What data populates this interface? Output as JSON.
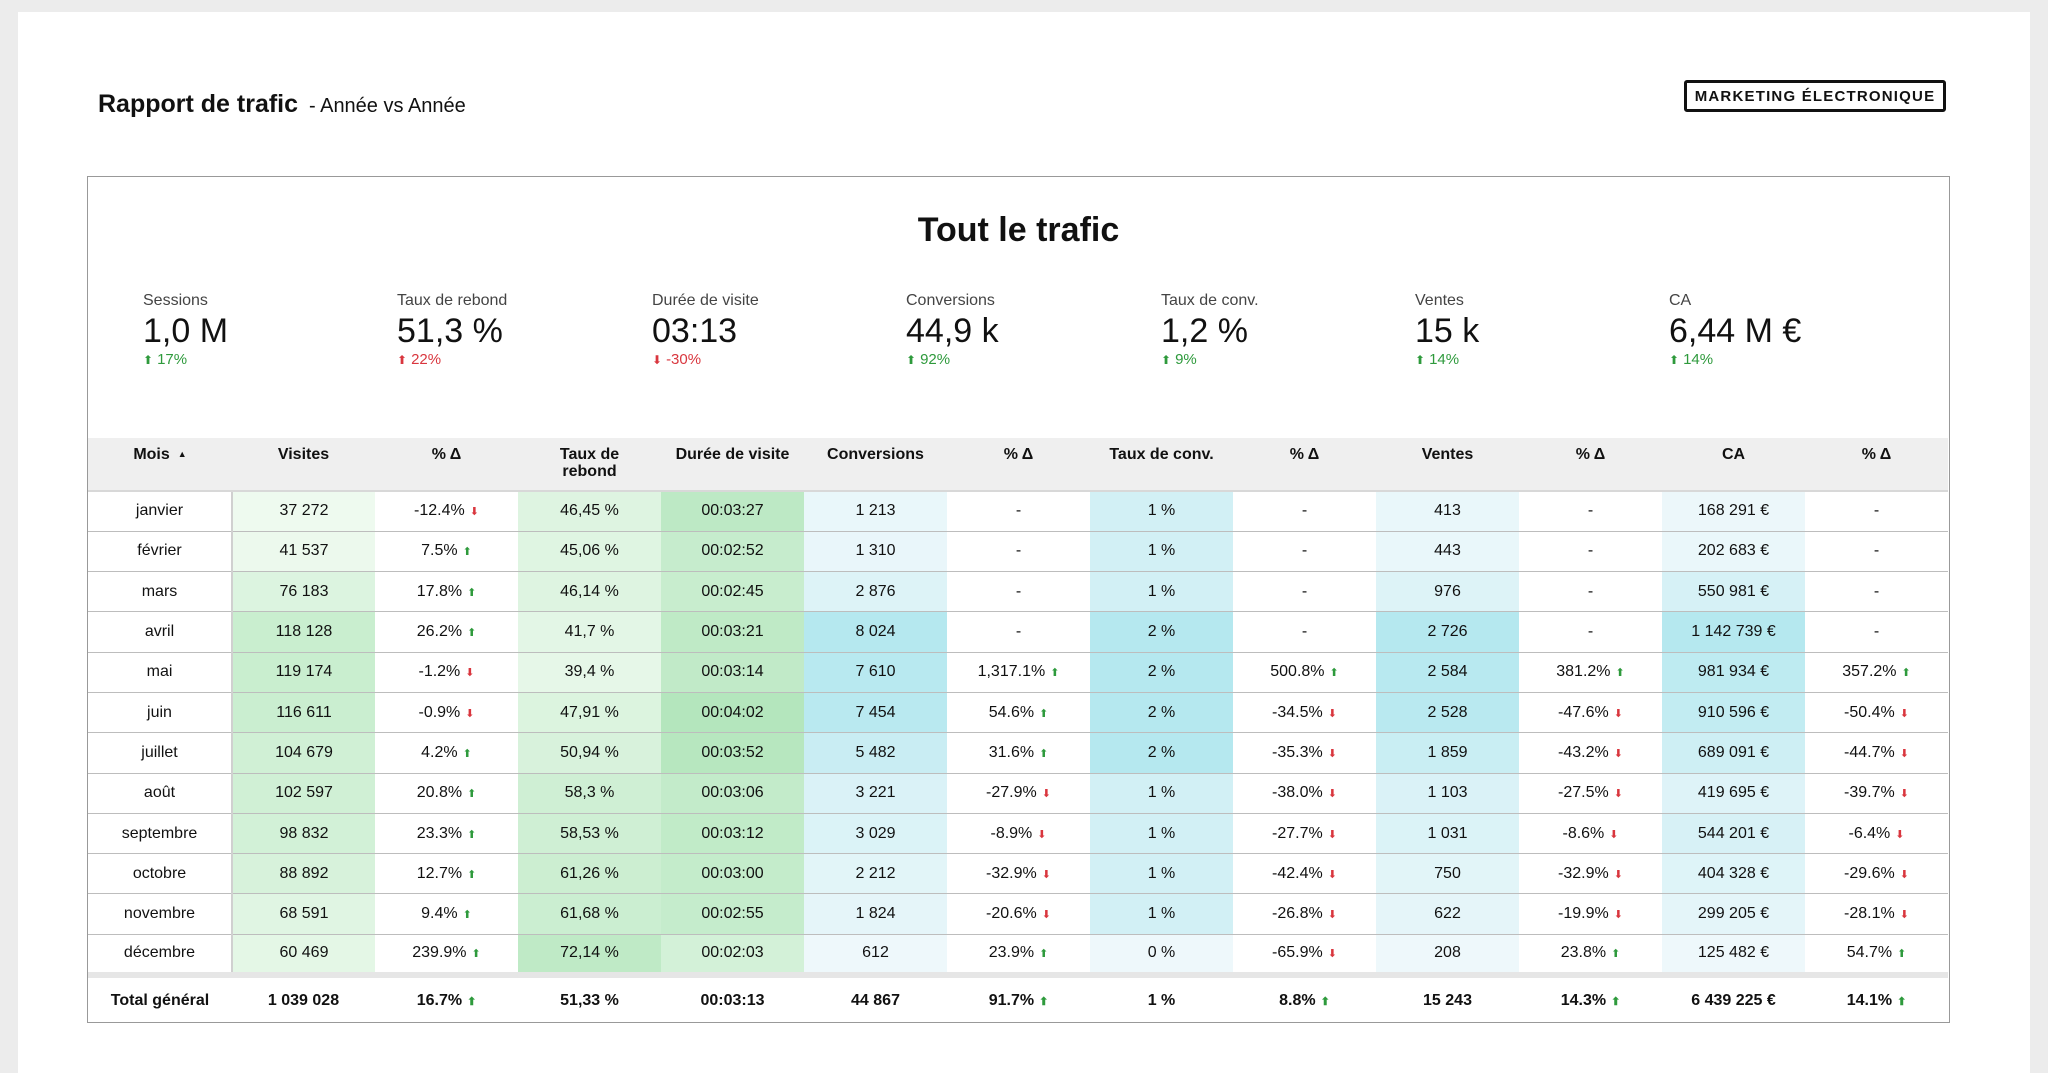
{
  "header": {
    "title": "Rapport de trafic",
    "subtitle": "- Année vs Année",
    "brand": "MARKETING ÉLECTRONIQUE"
  },
  "panel": {
    "title": "Tout le trafic"
  },
  "kpis": [
    {
      "label": "Sessions",
      "value": "1,0 M",
      "change": "17%",
      "trend": "up"
    },
    {
      "label": "Taux de rebond",
      "value": "51,3 %",
      "change": "22%",
      "trend": "up-bad"
    },
    {
      "label": "Durée de visite",
      "value": "03:13",
      "change": "-30%",
      "trend": "down"
    },
    {
      "label": "Conversions",
      "value": "44,9 k",
      "change": "92%",
      "trend": "up"
    },
    {
      "label": "Taux de conv.",
      "value": "1,2 %",
      "change": "9%",
      "trend": "up"
    },
    {
      "label": "Ventes",
      "value": "15 k",
      "change": "14%",
      "trend": "up"
    },
    {
      "label": "CA",
      "value": "6,44 M €",
      "change": "14%",
      "trend": "up"
    }
  ],
  "table": {
    "columns": [
      "Mois",
      "Visites",
      "% Δ",
      "Taux de rebond",
      "Durée de visite",
      "Conversions",
      "% Δ",
      "Taux de conv.",
      "% Δ",
      "Ventes",
      "% Δ",
      "CA",
      "% Δ"
    ],
    "rows": [
      [
        "janvier",
        "37 272",
        "-12.4%",
        "46,45 %",
        "00:03:27",
        "1 213",
        "-",
        "1 %",
        "-",
        "413",
        "-",
        "168 291 €",
        "-"
      ],
      [
        "février",
        "41 537",
        "7.5%",
        "45,06 %",
        "00:02:52",
        "1 310",
        "-",
        "1 %",
        "-",
        "443",
        "-",
        "202 683 €",
        "-"
      ],
      [
        "mars",
        "76 183",
        "17.8%",
        "46,14 %",
        "00:02:45",
        "2 876",
        "-",
        "1 %",
        "-",
        "976",
        "-",
        "550 981 €",
        "-"
      ],
      [
        "avril",
        "118 128",
        "26.2%",
        "41,7 %",
        "00:03:21",
        "8 024",
        "-",
        "2 %",
        "-",
        "2 726",
        "-",
        "1 142 739 €",
        "-"
      ],
      [
        "mai",
        "119 174",
        "-1.2%",
        "39,4 %",
        "00:03:14",
        "7 610",
        "1,317.1%",
        "2 %",
        "500.8%",
        "2 584",
        "381.2%",
        "981 934 €",
        "357.2%"
      ],
      [
        "juin",
        "116 611",
        "-0.9%",
        "47,91 %",
        "00:04:02",
        "7 454",
        "54.6%",
        "2 %",
        "-34.5%",
        "2 528",
        "-47.6%",
        "910 596 €",
        "-50.4%"
      ],
      [
        "juillet",
        "104 679",
        "4.2%",
        "50,94 %",
        "00:03:52",
        "5 482",
        "31.6%",
        "2 %",
        "-35.3%",
        "1 859",
        "-43.2%",
        "689 091 €",
        "-44.7%"
      ],
      [
        "août",
        "102 597",
        "20.8%",
        "58,3 %",
        "00:03:06",
        "3 221",
        "-27.9%",
        "1 %",
        "-38.0%",
        "1 103",
        "-27.5%",
        "419 695 €",
        "-39.7%"
      ],
      [
        "septembre",
        "98 832",
        "23.3%",
        "58,53 %",
        "00:03:12",
        "3 029",
        "-8.9%",
        "1 %",
        "-27.7%",
        "1 031",
        "-8.6%",
        "544 201 €",
        "-6.4%"
      ],
      [
        "octobre",
        "88 892",
        "12.7%",
        "61,26 %",
        "00:03:00",
        "2 212",
        "-32.9%",
        "1 %",
        "-42.4%",
        "750",
        "-32.9%",
        "404 328 €",
        "-29.6%"
      ],
      [
        "novembre",
        "68 591",
        "9.4%",
        "61,68 %",
        "00:02:55",
        "1 824",
        "-20.6%",
        "1 %",
        "-26.8%",
        "622",
        "-19.9%",
        "299 205 €",
        "-28.1%"
      ],
      [
        "décembre",
        "60 469",
        "239.9%",
        "72,14 %",
        "00:02:03",
        "612",
        "23.9%",
        "0 %",
        "-65.9%",
        "208",
        "23.8%",
        "125 482 €",
        "54.7%"
      ]
    ],
    "total": [
      "Total général",
      "1 039 028",
      "16.7%",
      "51,33 %",
      "00:03:13",
      "44 867",
      "91.7%",
      "1 %",
      "8.8%",
      "15 243",
      "14.3%",
      "6 439 225 €",
      "14.1%"
    ]
  },
  "colors": {
    "green_scale": [
      "#eefaef",
      "#c9eecf"
    ],
    "bounce_scale": [
      "#e6f7e8",
      "#bfeac6"
    ],
    "duration_scale": [
      "#d3f1d8",
      "#b4e6bd"
    ],
    "blue_scale": [
      "#eef8fb",
      "#b5e8ef"
    ],
    "up": "#2e9a3c",
    "down": "#d9363e"
  }
}
